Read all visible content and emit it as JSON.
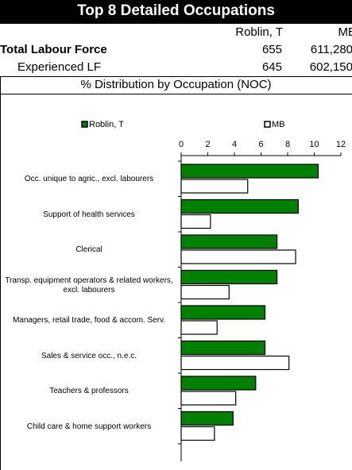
{
  "header": {
    "title": "Top 8 Detailed Occupations",
    "columns": [
      "Roblin, T",
      "MB"
    ],
    "rows": [
      {
        "label": "Total Labour Force",
        "values": [
          "655",
          "611,280"
        ]
      },
      {
        "label": "Experienced LF",
        "values": [
          "645",
          "602,150"
        ]
      }
    ],
    "section": "% Distribution by Occupation (NOC)"
  },
  "chart_data": {
    "type": "hbar",
    "categories": [
      "Occ. unique to agric., excl. labourers",
      "Support of health services",
      "Clerical",
      "Transp. equipment operators & related workers, excl. labourers",
      "Managers, retail trade, food & accom. Serv.",
      "Sales & service occ., n.e.c.",
      "Teachers & professors",
      "Child care & home support workers"
    ],
    "series": [
      {
        "name": "Roblin, T",
        "color": "#008000",
        "values": [
          10.3,
          8.8,
          7.2,
          7.2,
          6.3,
          6.3,
          5.6,
          3.9
        ]
      },
      {
        "name": "MB",
        "color": "#ffffff",
        "values": [
          5.0,
          2.2,
          8.6,
          3.6,
          2.7,
          8.1,
          4.1,
          2.5
        ]
      }
    ],
    "xlim": [
      0,
      12
    ],
    "xticks": [
      0,
      2,
      4,
      6,
      8,
      10,
      12
    ],
    "legend": "top"
  }
}
